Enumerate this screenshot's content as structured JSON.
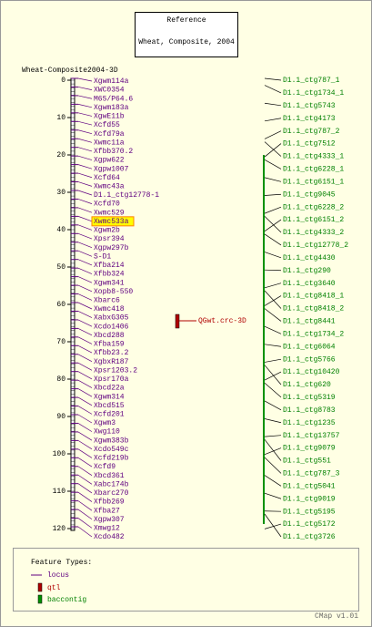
{
  "header": {
    "title": "Reference",
    "subtitle": "Wheat, Composite, 2004"
  },
  "map": {
    "title": "Wheat-Composite2004-3D",
    "ticks": [
      0,
      10,
      20,
      30,
      40,
      50,
      60,
      70,
      80,
      90,
      100,
      110,
      120
    ],
    "loci": [
      "Xgwm114a",
      "XWC0354",
      "M65/P64.6",
      "Xgwm183a",
      "XgwE11b",
      "Xcfd55",
      "Xcfd79a",
      "Xwmc11a",
      "Xfbb370.2",
      "Xgpw622",
      "Xgpw1007",
      "Xcfd64",
      "Xwmc43a",
      "D1.1_ctg12778-1",
      "Xcfd70",
      "Xwmc529",
      "Xwmc533a",
      "Xgwm2b",
      "Xpsr394",
      "Xgpw297b",
      "S-D1",
      "Xfba214",
      "Xfbb324",
      "Xgwm341",
      "Xopb8-550",
      "Xbarc6",
      "Xwmc418",
      "XabxG305",
      "Xcdo1406",
      "Xbcd288",
      "Xfba159",
      "Xfbb23.2",
      "XgbxR187",
      "Xpsr1203.2",
      "Xpsr170a",
      "Xbcd22a",
      "Xgwm314",
      "Xbcd515",
      "Xcfd201",
      "Xgwm3",
      "Xwg110",
      "Xgwm383b",
      "Xcdo549c",
      "Xcfd219b",
      "Xcfd9",
      "Xbcd361",
      "Xabc174b",
      "Xbarc270",
      "Xfbb269",
      "Xfba27",
      "Xgpw307",
      "Xmwg12",
      "Xcdo482"
    ],
    "highlighted": 16,
    "qtl": "QGwt.crc-3D",
    "contigs": [
      "D1.1_ctg787_1",
      "D1.1_ctg1734_1",
      "D1.1_ctg5743",
      "D1.1_ctg4173",
      "D1.1_ctg787_2",
      "D1.1_ctg7512",
      "D1.1_ctg4333_1",
      "D1.1_ctg6228_1",
      "D1.1_ctg6151_1",
      "D1.1_ctg9045",
      "D1.1_ctg6228_2",
      "D1.1_ctg6151_2",
      "D1.1_ctg4333_2",
      "D1.1_ctg12778_2",
      "D1.1_ctg4430",
      "D1.1_ctg290",
      "D1.1_ctg3640",
      "D1.1_ctg8418_1",
      "D1.1_ctg8418_2",
      "D1.1_ctg8441",
      "D1.1_ctg1734_2",
      "D1.1_ctg6064",
      "D1.1_ctg5766",
      "D1.1_ctg10420",
      "D1.1_ctg620",
      "D1.1_ctg5319",
      "D1.1_ctg8783",
      "D1.1_ctg1235",
      "D1.1_ctg13757",
      "D1.1_ctg9079",
      "D1.1_ctg551",
      "D1.1_ctg787_3",
      "D1.1_ctg5041",
      "D1.1_ctg9019",
      "D1.1_ctg5195",
      "D1.1_ctg5172",
      "D1.1_ctg3726"
    ]
  },
  "legend": {
    "title": "Feature Types:",
    "items": [
      "locus",
      "qtl",
      "baccontig"
    ]
  },
  "footer": "CMap v1.01"
}
